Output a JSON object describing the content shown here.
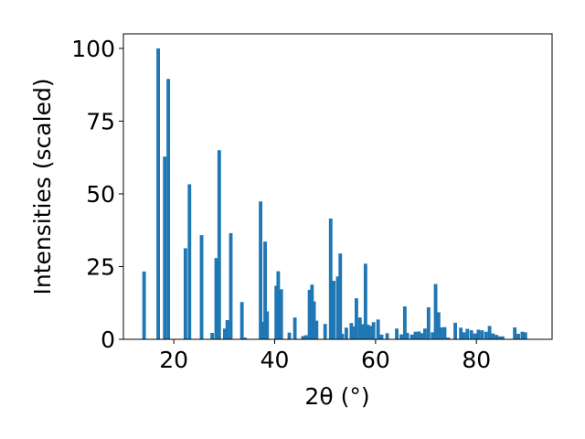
{
  "chart_data": {
    "type": "bar",
    "title": "",
    "xlabel": "2θ (°)",
    "ylabel": "Intensities (scaled)",
    "xlim": [
      10,
      95
    ],
    "ylim": [
      0,
      105
    ],
    "xticks": [
      20,
      40,
      60,
      80
    ],
    "yticks": [
      0,
      25,
      50,
      75,
      100
    ],
    "grid": false,
    "legend": "none",
    "bar_color": "#1f77b4",
    "bar_width": 0.7,
    "x": [
      14.1,
      16.9,
      18.2,
      18.9,
      22.3,
      23.1,
      25.5,
      27.6,
      28.4,
      29.0,
      30.1,
      30.6,
      31.3,
      33.5,
      34.1,
      37.2,
      37.6,
      38.1,
      38.5,
      40.3,
      40.7,
      41.3,
      42.9,
      44.0,
      45.6,
      46.2,
      46.9,
      47.4,
      47.8,
      48.3,
      50.0,
      51.1,
      51.7,
      52.5,
      53.0,
      53.4,
      54.2,
      55.2,
      55.6,
      56.2,
      56.9,
      57.5,
      58.0,
      58.5,
      59.0,
      59.6,
      60.5,
      61.2,
      62.3,
      64.2,
      65.1,
      65.8,
      66.3,
      67.2,
      67.9,
      68.6,
      69.1,
      69.8,
      70.5,
      71.3,
      71.9,
      72.5,
      73.0,
      73.7,
      74.4,
      75.8,
      76.9,
      77.5,
      78.2,
      79.0,
      79.7,
      80.4,
      81.1,
      81.9,
      82.6,
      83.3,
      84.0,
      84.6,
      85.2,
      87.6,
      88.3,
      89.1,
      89.7
    ],
    "values": [
      23.3,
      100.0,
      62.8,
      89.5,
      31.3,
      53.3,
      35.8,
      2.2,
      27.9,
      65.0,
      3.7,
      6.6,
      36.5,
      12.8,
      0.6,
      47.4,
      6.0,
      33.6,
      9.6,
      18.4,
      23.4,
      17.2,
      2.3,
      7.5,
      1.1,
      1.4,
      17.0,
      18.8,
      13.0,
      6.4,
      5.3,
      41.5,
      20.1,
      21.6,
      29.5,
      1.9,
      4.0,
      5.6,
      4.4,
      14.1,
      7.5,
      5.2,
      26.0,
      5.0,
      4.6,
      5.9,
      6.8,
      1.6,
      2.1,
      3.7,
      1.7,
      11.3,
      2.2,
      1.6,
      2.6,
      2.7,
      2.1,
      3.7,
      11.0,
      2.4,
      19.0,
      9.3,
      4.1,
      4.2,
      0.6,
      5.7,
      4.0,
      2.4,
      3.6,
      3.1,
      2.0,
      3.3,
      3.1,
      2.6,
      4.6,
      2.0,
      1.5,
      1.0,
      1.0,
      4.1,
      1.9,
      2.6,
      2.4
    ]
  }
}
